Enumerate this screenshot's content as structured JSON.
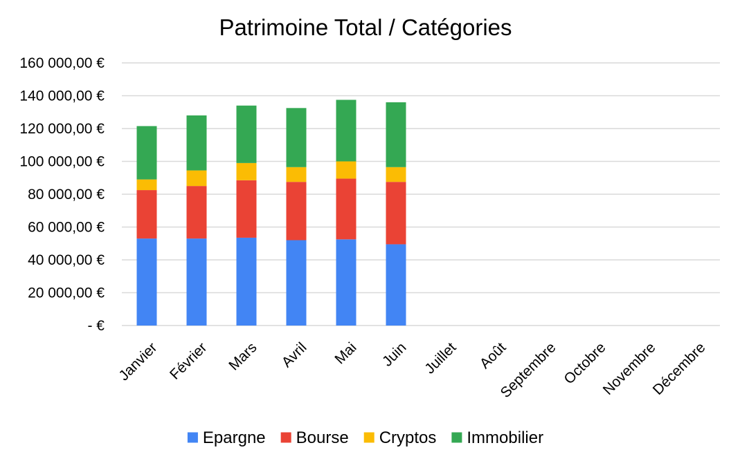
{
  "chart_data": {
    "type": "bar",
    "stacked": true,
    "title": "Patrimoine Total / Catégories",
    "xlabel": "",
    "ylabel": "",
    "categories": [
      "Janvier",
      "Février",
      "Mars",
      "Avril",
      "Mai",
      "Juin",
      "Juillet",
      "Août",
      "Septembre",
      "Octobre",
      "Novembre",
      "Décembre"
    ],
    "series": [
      {
        "name": "Epargne",
        "color": "#4285F4",
        "values": [
          53000,
          53000,
          53500,
          52000,
          52500,
          49500,
          null,
          null,
          null,
          null,
          null,
          null
        ]
      },
      {
        "name": "Bourse",
        "color": "#EA4335",
        "values": [
          29500,
          32000,
          35000,
          35500,
          37000,
          38000,
          null,
          null,
          null,
          null,
          null,
          null
        ]
      },
      {
        "name": "Cryptos",
        "color": "#FBBC04",
        "values": [
          6500,
          9500,
          10500,
          9000,
          10500,
          9000,
          null,
          null,
          null,
          null,
          null,
          null
        ]
      },
      {
        "name": "Immobilier",
        "color": "#34A853",
        "values": [
          32500,
          33500,
          35000,
          36000,
          37500,
          39500,
          null,
          null,
          null,
          null,
          null,
          null
        ]
      }
    ],
    "ylim": [
      0,
      160000
    ],
    "yticks": [
      0,
      20000,
      40000,
      60000,
      80000,
      100000,
      120000,
      140000,
      160000
    ],
    "ytick_labels": [
      "-   €",
      "20 000,00 €",
      "40 000,00 €",
      "60 000,00 €",
      "80 000,00 €",
      "100 000,00 €",
      "120 000,00 €",
      "140 000,00 €",
      "160 000,00 €"
    ],
    "grid": true,
    "legend_position": "bottom",
    "gridline_color": "#d9d9d9"
  }
}
